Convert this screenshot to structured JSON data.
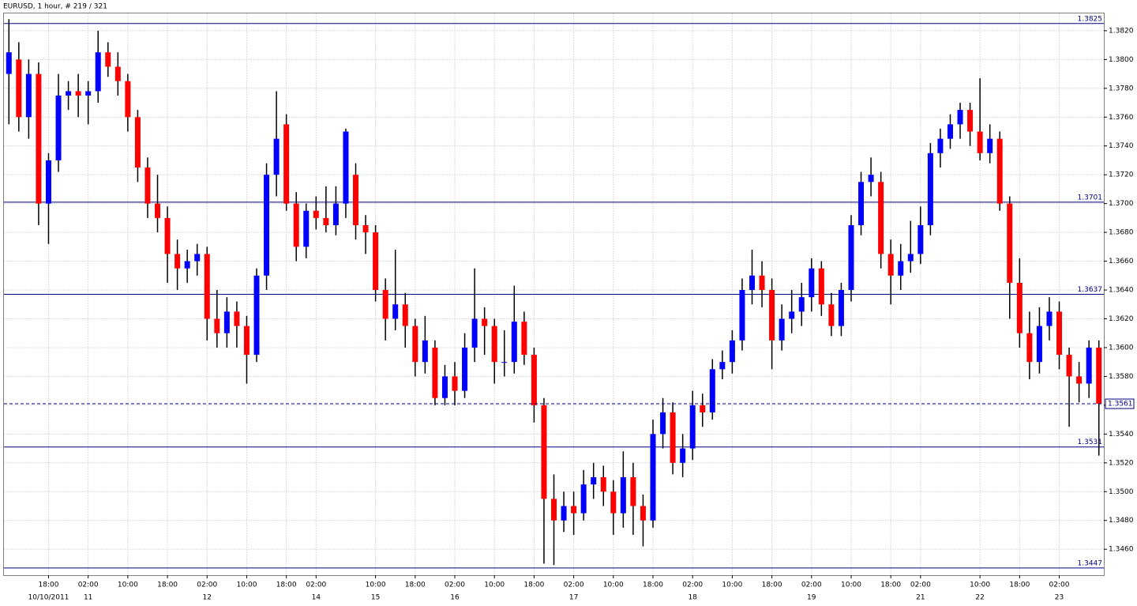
{
  "chart_data": {
    "type": "candlestick",
    "title": "EURUSD, 1 hour, # 219 / 321",
    "up_color": "#0000ff",
    "down_color": "#ff0000",
    "wick_color": "#000000",
    "level_color": "#000080",
    "grid": true,
    "ylim": [
      1.3442,
      1.3832
    ],
    "yticks": [
      {
        "value": 1.346,
        "label": "1.3460"
      },
      {
        "value": 1.348,
        "label": "1.3480"
      },
      {
        "value": 1.35,
        "label": "1.3500"
      },
      {
        "value": 1.352,
        "label": "1.3520"
      },
      {
        "value": 1.354,
        "label": "1.3540"
      },
      {
        "value": 1.356,
        "label": "1.3560"
      },
      {
        "value": 1.358,
        "label": "1.3580"
      },
      {
        "value": 1.36,
        "label": "1.3600"
      },
      {
        "value": 1.362,
        "label": "1.3620"
      },
      {
        "value": 1.364,
        "label": "1.3640"
      },
      {
        "value": 1.366,
        "label": "1.3660"
      },
      {
        "value": 1.368,
        "label": "1.3680"
      },
      {
        "value": 1.37,
        "label": "1.3700"
      },
      {
        "value": 1.372,
        "label": "1.3720"
      },
      {
        "value": 1.374,
        "label": "1.3740"
      },
      {
        "value": 1.376,
        "label": "1.3760"
      },
      {
        "value": 1.378,
        "label": "1.3780"
      },
      {
        "value": 1.38,
        "label": "1.3800"
      },
      {
        "value": 1.382,
        "label": "1.3820"
      }
    ],
    "levels": [
      1.3825,
      1.3701,
      1.3637,
      1.3531,
      1.3447
    ],
    "current_price": 1.3561,
    "categories": [
      null,
      null,
      null,
      null,
      "18:00",
      null,
      null,
      null,
      "02:00",
      null,
      null,
      null,
      "10:00",
      null,
      null,
      null,
      "18:00",
      null,
      null,
      null,
      "02:00",
      null,
      null,
      null,
      "10:00",
      null,
      null,
      null,
      "18:00",
      null,
      null,
      "02:00",
      null,
      null,
      null,
      null,
      null,
      "10:00",
      null,
      null,
      null,
      "18:00",
      null,
      null,
      null,
      "02:00",
      null,
      null,
      null,
      "10:00",
      null,
      null,
      null,
      "18:00",
      null,
      null,
      null,
      "02:00",
      null,
      null,
      null,
      "10:00",
      null,
      null,
      null,
      "18:00",
      null,
      null,
      null,
      "02:00",
      null,
      null,
      null,
      "10:00",
      null,
      null,
      null,
      "18:00",
      null,
      null,
      null,
      "02:00",
      null,
      null,
      null,
      "10:00",
      null,
      null,
      null,
      "18:00",
      null,
      null,
      "02:00",
      null,
      null,
      null,
      null,
      null,
      "10:00",
      null,
      null,
      null,
      "18:00",
      null,
      null,
      null,
      "02:00",
      null,
      null,
      null,
      null
    ],
    "dates": [
      null,
      null,
      null,
      null,
      "10/10/2011",
      null,
      null,
      null,
      "11",
      null,
      null,
      null,
      null,
      null,
      null,
      null,
      null,
      null,
      null,
      null,
      "12",
      null,
      null,
      null,
      null,
      null,
      null,
      null,
      null,
      null,
      null,
      "14",
      null,
      null,
      null,
      null,
      null,
      "15",
      null,
      null,
      null,
      null,
      null,
      null,
      null,
      "16",
      null,
      null,
      null,
      null,
      null,
      null,
      null,
      null,
      null,
      null,
      null,
      "17",
      null,
      null,
      null,
      null,
      null,
      null,
      null,
      null,
      null,
      null,
      null,
      "18",
      null,
      null,
      null,
      null,
      null,
      null,
      null,
      null,
      null,
      null,
      null,
      "19",
      null,
      null,
      null,
      null,
      null,
      null,
      null,
      null,
      null,
      null,
      "21",
      null,
      null,
      null,
      null,
      null,
      "22",
      null,
      null,
      null,
      null,
      null,
      null,
      null,
      "23",
      null,
      null,
      null,
      null
    ],
    "open": [
      1.379,
      1.38,
      1.376,
      1.379,
      1.37,
      1.373,
      1.3775,
      1.3778,
      1.3775,
      1.3778,
      1.3805,
      1.3795,
      1.3785,
      1.376,
      1.3725,
      1.37,
      1.369,
      1.3665,
      1.3655,
      1.366,
      1.3665,
      1.362,
      1.361,
      1.3625,
      1.3615,
      1.3595,
      1.365,
      1.372,
      1.3755,
      1.37,
      1.367,
      1.3695,
      1.369,
      1.3685,
      1.37,
      1.372,
      1.3685,
      1.368,
      1.364,
      1.362,
      1.363,
      1.3615,
      1.359,
      1.36,
      1.3565,
      1.358,
      1.357,
      1.36,
      1.362,
      1.3615,
      1.359,
      1.359,
      1.3618,
      1.3595,
      1.356,
      1.3495,
      1.348,
      1.349,
      1.3485,
      1.3505,
      1.351,
      1.35,
      1.3485,
      1.351,
      1.349,
      1.348,
      1.354,
      1.3555,
      1.352,
      1.353,
      1.356,
      1.3555,
      1.3585,
      1.359,
      1.3605,
      1.364,
      1.365,
      1.364,
      1.3605,
      1.362,
      1.3625,
      1.3635,
      1.3655,
      1.363,
      1.3615,
      1.364,
      1.3685,
      1.3715,
      1.3715,
      1.3665,
      1.365,
      1.366,
      1.3665,
      1.3685,
      1.3735,
      1.3745,
      1.3755,
      1.3765,
      1.375,
      1.3735,
      1.3745,
      1.37,
      1.3645,
      1.361,
      1.359,
      1.3615,
      1.3625,
      1.3595,
      1.358,
      1.3575,
      1.36
    ],
    "high": [
      1.3828,
      1.3812,
      1.38,
      1.3798,
      1.3735,
      1.379,
      1.3785,
      1.379,
      1.3785,
      1.382,
      1.3812,
      1.3805,
      1.379,
      1.3765,
      1.3732,
      1.372,
      1.3698,
      1.3675,
      1.3668,
      1.3672,
      1.367,
      1.364,
      1.3635,
      1.3632,
      1.3622,
      1.3655,
      1.3728,
      1.3778,
      1.3762,
      1.3708,
      1.37,
      1.3705,
      1.3712,
      1.3712,
      1.3752,
      1.3728,
      1.3692,
      1.3685,
      1.3648,
      1.3668,
      1.3638,
      1.362,
      1.3622,
      1.3605,
      1.3588,
      1.359,
      1.361,
      1.3655,
      1.3628,
      1.362,
      1.3612,
      1.3643,
      1.3625,
      1.36,
      1.3565,
      1.3512,
      1.35,
      1.35,
      1.3515,
      1.352,
      1.3518,
      1.3508,
      1.3528,
      1.352,
      1.3498,
      1.355,
      1.3565,
      1.3562,
      1.354,
      1.357,
      1.3568,
      1.3592,
      1.3598,
      1.3612,
      1.3648,
      1.3668,
      1.366,
      1.3648,
      1.363,
      1.364,
      1.3645,
      1.3662,
      1.366,
      1.3638,
      1.3645,
      1.3692,
      1.3722,
      1.3732,
      1.3722,
      1.3675,
      1.3672,
      1.3688,
      1.3698,
      1.3742,
      1.3752,
      1.3762,
      1.377,
      1.377,
      1.3787,
      1.3755,
      1.375,
      1.3705,
      1.3662,
      1.3625,
      1.3628,
      1.3635,
      1.3632,
      1.36,
      1.359,
      1.3605,
      1.3605
    ],
    "low": [
      1.3755,
      1.375,
      1.3745,
      1.3685,
      1.3672,
      1.3722,
      1.3765,
      1.376,
      1.3755,
      1.377,
      1.3788,
      1.3775,
      1.375,
      1.3715,
      1.369,
      1.368,
      1.3645,
      1.364,
      1.3645,
      1.365,
      1.3605,
      1.36,
      1.36,
      1.36,
      1.3575,
      1.359,
      1.364,
      1.3705,
      1.3695,
      1.366,
      1.3662,
      1.3682,
      1.368,
      1.3678,
      1.369,
      1.3675,
      1.3665,
      1.3632,
      1.3605,
      1.3612,
      1.36,
      1.358,
      1.3582,
      1.356,
      1.356,
      1.356,
      1.3565,
      1.359,
      1.3595,
      1.3575,
      1.358,
      1.3582,
      1.3588,
      1.3548,
      1.345,
      1.3449,
      1.3472,
      1.347,
      1.348,
      1.3495,
      1.349,
      1.347,
      1.3475,
      1.347,
      1.3462,
      1.3475,
      1.353,
      1.3512,
      1.351,
      1.3522,
      1.3545,
      1.355,
      1.3578,
      1.3582,
      1.3598,
      1.363,
      1.3628,
      1.3585,
      1.3598,
      1.361,
      1.3615,
      1.3625,
      1.3622,
      1.3608,
      1.3608,
      1.3632,
      1.3678,
      1.3705,
      1.3655,
      1.363,
      1.364,
      1.3652,
      1.3658,
      1.3678,
      1.3725,
      1.3738,
      1.3745,
      1.374,
      1.373,
      1.3728,
      1.3695,
      1.362,
      1.36,
      1.3578,
      1.3582,
      1.3605,
      1.3585,
      1.3545,
      1.3562,
      1.3565,
      1.3525
    ],
    "close": [
      1.3805,
      1.376,
      1.379,
      1.37,
      1.373,
      1.3775,
      1.3778,
      1.3775,
      1.3778,
      1.3805,
      1.3795,
      1.3785,
      1.376,
      1.3725,
      1.37,
      1.369,
      1.3665,
      1.3655,
      1.366,
      1.3665,
      1.362,
      1.361,
      1.3625,
      1.3615,
      1.3595,
      1.365,
      1.372,
      1.3745,
      1.37,
      1.367,
      1.3695,
      1.369,
      1.3685,
      1.37,
      1.375,
      1.3685,
      1.368,
      1.364,
      1.362,
      1.363,
      1.3615,
      1.359,
      1.3605,
      1.3565,
      1.358,
      1.357,
      1.36,
      1.362,
      1.3615,
      1.359,
      1.359,
      1.3618,
      1.3595,
      1.356,
      1.3495,
      1.348,
      1.349,
      1.3485,
      1.3505,
      1.351,
      1.35,
      1.3485,
      1.351,
      1.349,
      1.348,
      1.354,
      1.3555,
      1.352,
      1.353,
      1.356,
      1.3555,
      1.3585,
      1.359,
      1.3605,
      1.364,
      1.365,
      1.364,
      1.3605,
      1.362,
      1.3625,
      1.3635,
      1.3655,
      1.363,
      1.3615,
      1.364,
      1.3685,
      1.3715,
      1.372,
      1.3665,
      1.365,
      1.366,
      1.3665,
      1.3685,
      1.3735,
      1.3745,
      1.3755,
      1.3765,
      1.375,
      1.3735,
      1.3745,
      1.37,
      1.3645,
      1.361,
      1.359,
      1.3615,
      1.3625,
      1.3595,
      1.358,
      1.3575,
      1.36,
      1.3561
    ]
  }
}
